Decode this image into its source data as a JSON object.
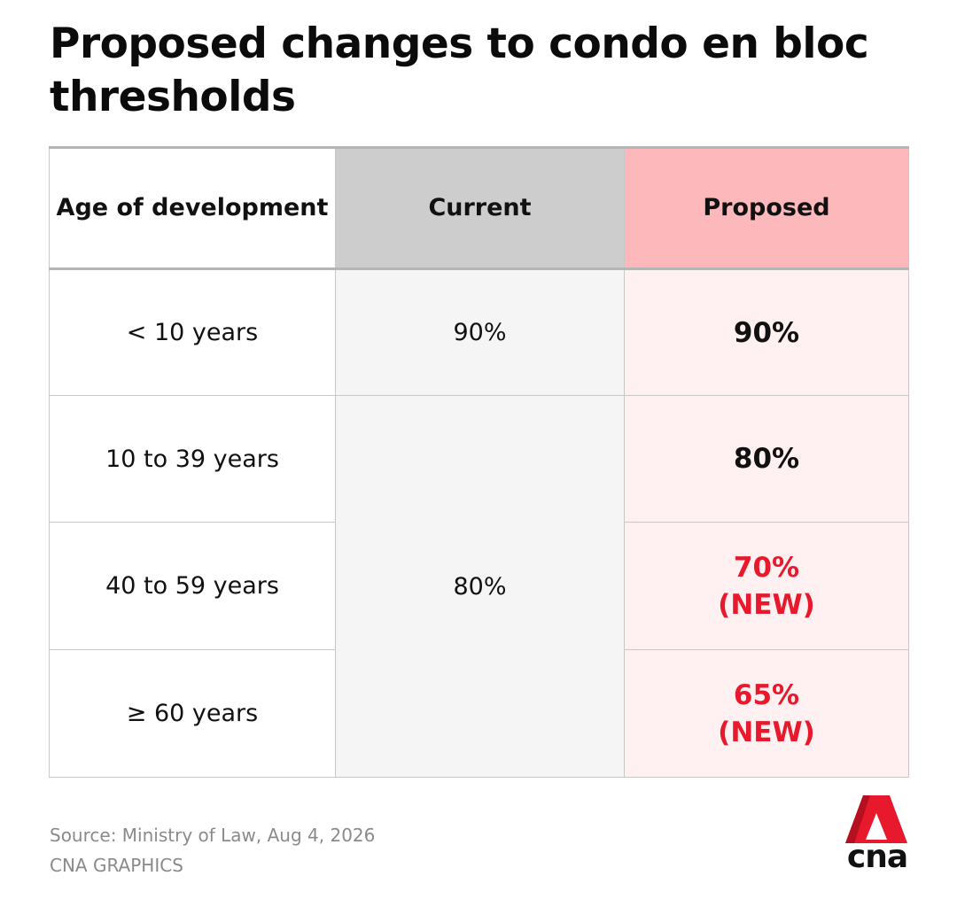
{
  "title": "Proposed changes to condo en bloc thresholds",
  "table": {
    "headers": {
      "age": "Age of development",
      "current": "Current",
      "proposed": "Proposed"
    },
    "rows": [
      {
        "age": "< 10 years",
        "current": "90%",
        "proposed": "90%",
        "proposed_note": ""
      },
      {
        "age": "10 to 39 years",
        "current": "80%",
        "proposed": "80%",
        "proposed_note": ""
      },
      {
        "age": "40 to 59 years",
        "current": "80%",
        "proposed": "70%",
        "proposed_note": "(NEW)"
      },
      {
        "age": "≥ 60 years",
        "current": "80%",
        "proposed": "65%",
        "proposed_note": "(NEW)"
      }
    ]
  },
  "colors": {
    "header_current_bg": "#cccdcc",
    "header_proposed_bg": "#fcb8ba",
    "proposed_cell_bg": "#fff1f1",
    "current_cell_bg": "#f5f5f5",
    "new_value_color": "#e8192c",
    "logo_red": "#e8192c"
  },
  "footer": {
    "source": "Source: Ministry of Law, Aug 4, 2026",
    "credit": "CNA GRAPHICS"
  },
  "logo": {
    "icon": "cna-triangle-logo-icon",
    "text": "cna"
  }
}
